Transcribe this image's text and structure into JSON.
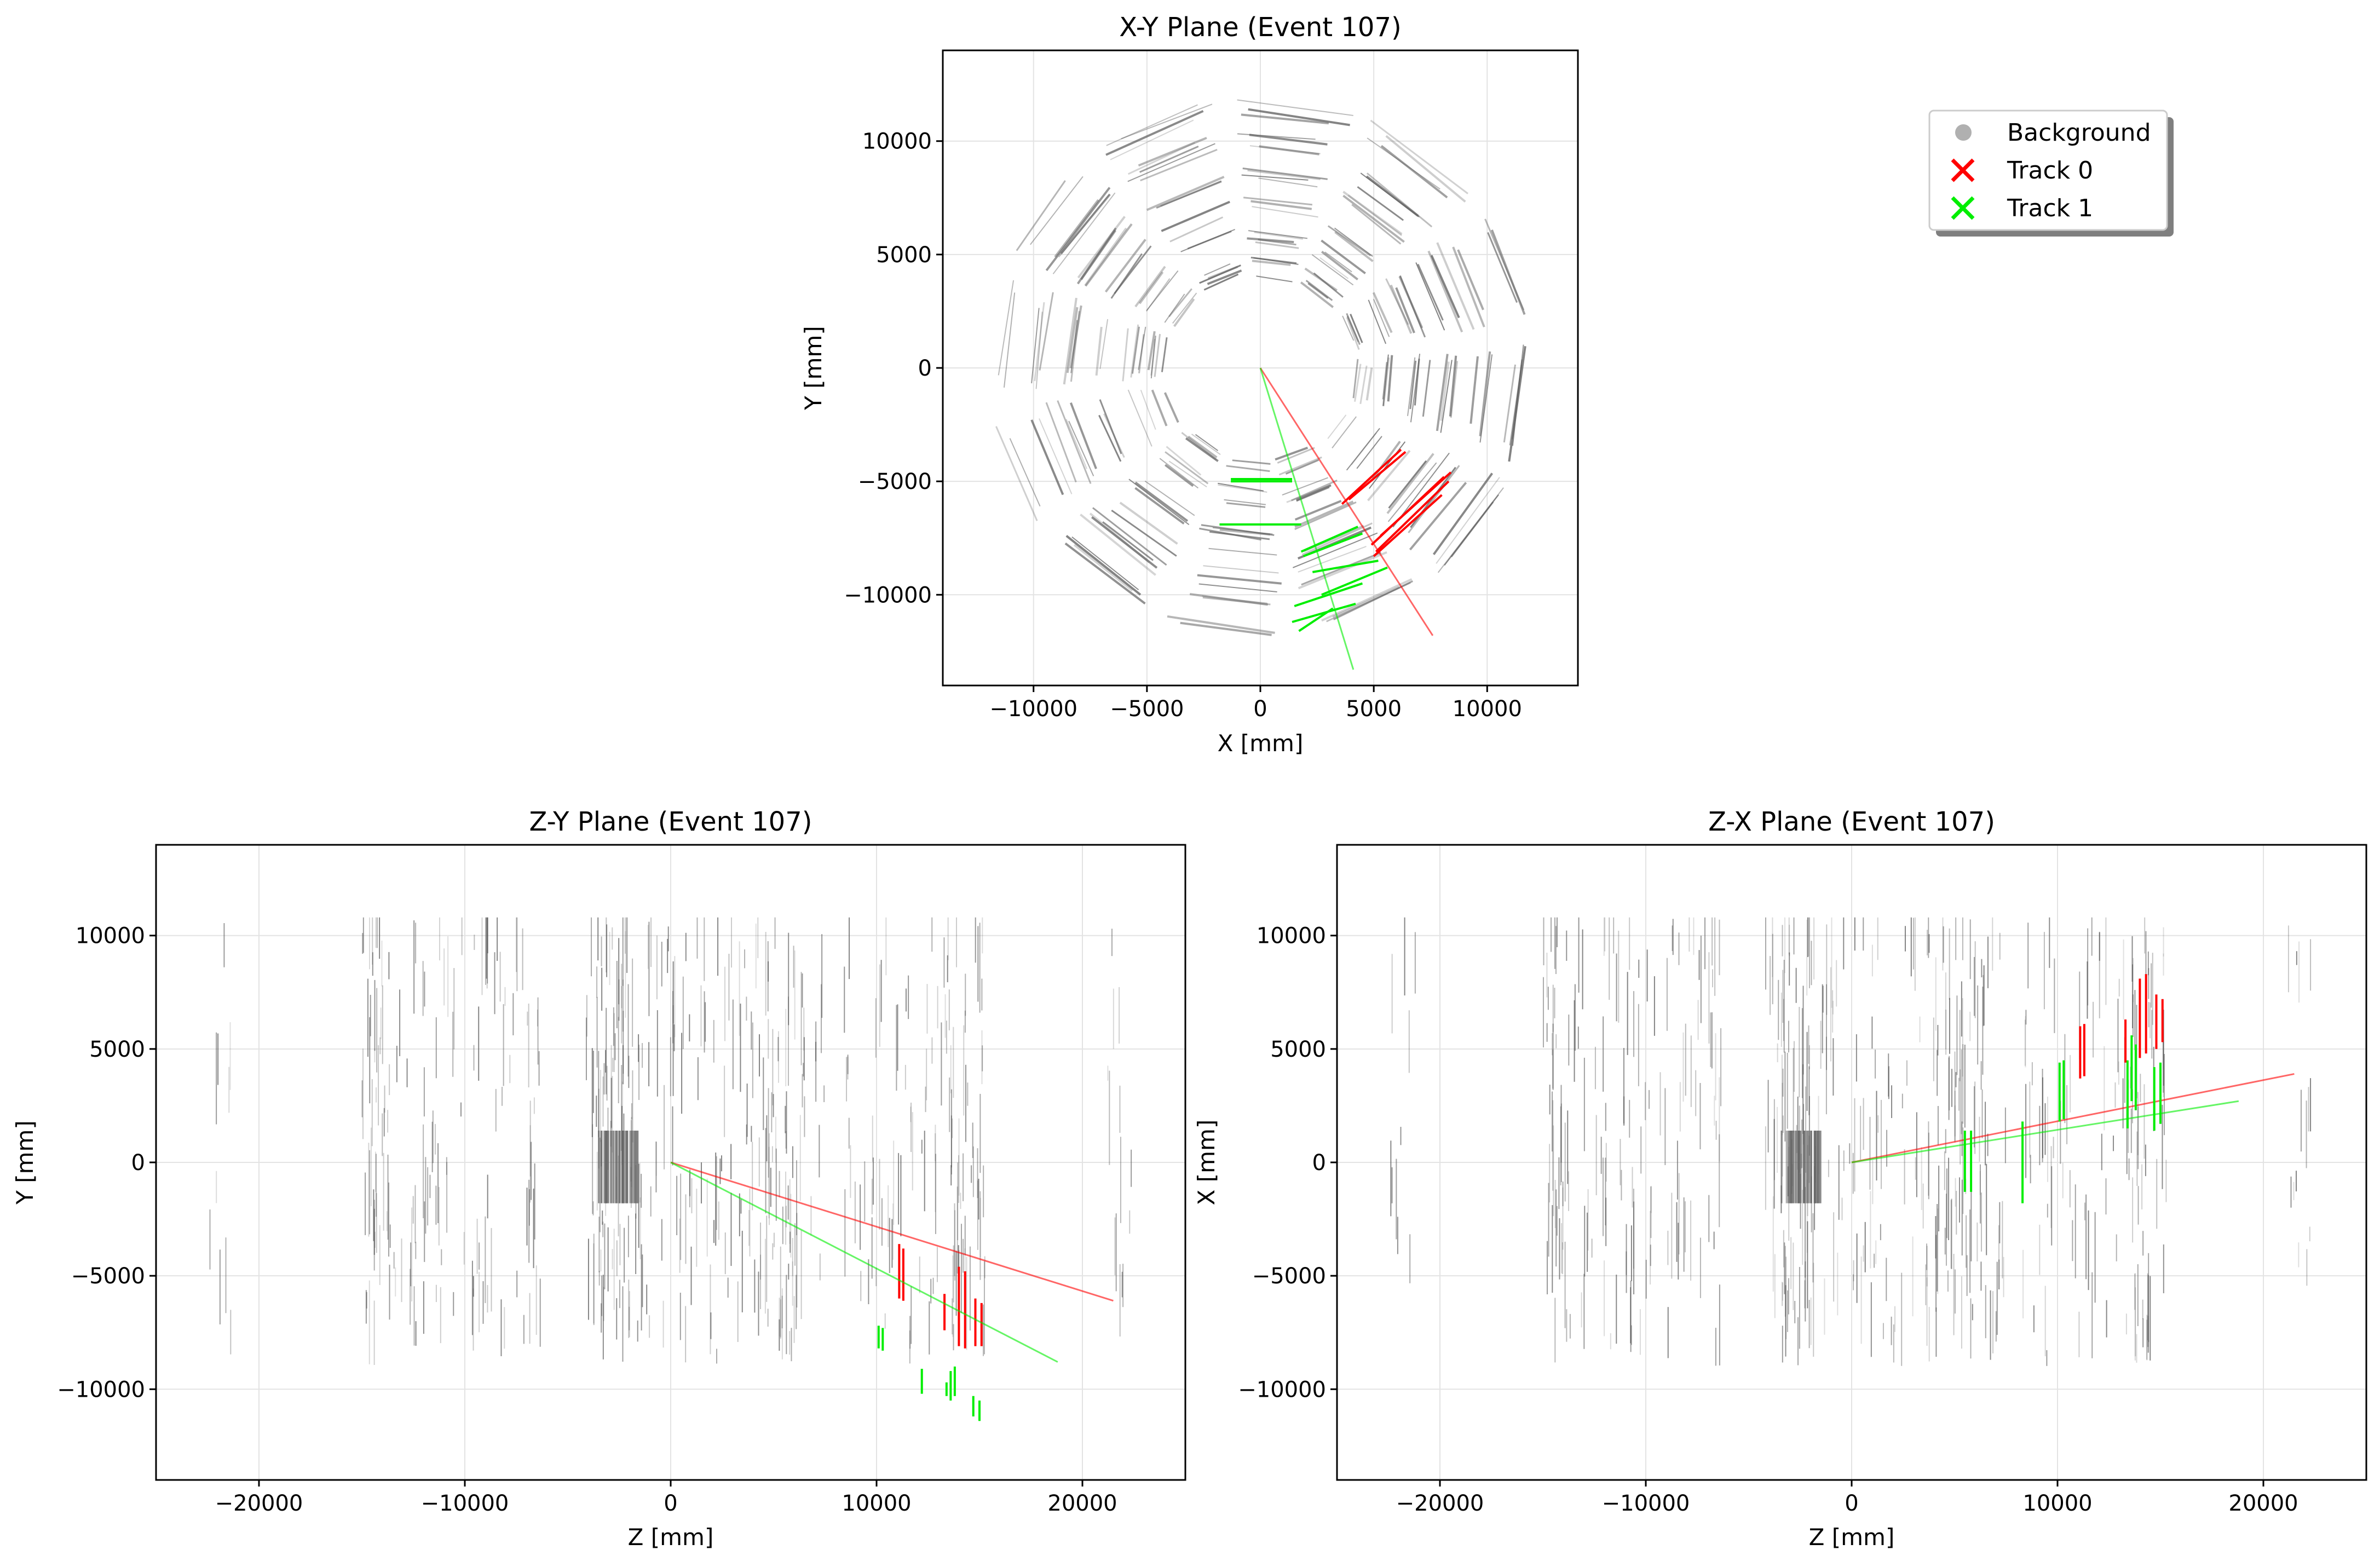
{
  "colors": {
    "background": "#b0b0b0",
    "track_0": "#ff0000",
    "track_1": "#00ee00",
    "grid": "#e3e3e3",
    "frame": "#000000"
  },
  "legend": {
    "placement": "upper-right",
    "items": [
      {
        "label": "Background",
        "marker": "circle",
        "color": "#b0b0b0"
      },
      {
        "label": "Track 0",
        "marker": "x",
        "color": "#ff0000"
      },
      {
        "label": "Track 1",
        "marker": "x",
        "color": "#00ee00"
      }
    ]
  },
  "chart_data": [
    {
      "id": "xy",
      "type": "scatter",
      "title": "X-Y Plane (Event 107)",
      "xlabel": "X [mm]",
      "ylabel": "Y [mm]",
      "xlim": [
        -14000,
        14000
      ],
      "ylim": [
        -14000,
        14000
      ],
      "xticks": [
        -10000,
        -5000,
        0,
        5000,
        10000
      ],
      "yticks": [
        -10000,
        -5000,
        0,
        5000,
        10000
      ],
      "xtick_labels": [
        "−10000",
        "−5000",
        "0",
        "5000",
        "10000"
      ],
      "ytick_labels": [
        "−10000",
        "−5000",
        "0",
        "5000",
        "10000"
      ],
      "grid": true,
      "background_rings": {
        "sides": 12,
        "radii": [
          4500,
          5800,
          7200,
          8700,
          10000,
          11500
        ]
      },
      "tracks": [
        {
          "track": 0,
          "line_from": [
            0,
            0
          ],
          "line_to": [
            7600,
            -11800
          ],
          "segments": [
            [
              [
                3600,
                -6000
              ],
              [
                6200,
                -3600
              ]
            ],
            [
              [
                3900,
                -5800
              ],
              [
                6400,
                -3700
              ]
            ],
            [
              [
                4900,
                -7800
              ],
              [
                8100,
                -4800
              ]
            ],
            [
              [
                5100,
                -8100
              ],
              [
                8300,
                -5000
              ]
            ],
            [
              [
                5300,
                -7400
              ],
              [
                8400,
                -4600
              ]
            ],
            [
              [
                5000,
                -8300
              ],
              [
                8000,
                -5600
              ]
            ]
          ]
        },
        {
          "track": 1,
          "line_from": [
            0,
            0
          ],
          "line_to": [
            4100,
            -13300
          ],
          "segments": [
            [
              [
                -1300,
                -4900
              ],
              [
                1400,
                -4900
              ]
            ],
            [
              [
                -1300,
                -5000
              ],
              [
                1400,
                -5000
              ]
            ],
            [
              [
                -1800,
                -6900
              ],
              [
                1800,
                -6900
              ]
            ],
            [
              [
                1800,
                -8100
              ],
              [
                4300,
                -7000
              ]
            ],
            [
              [
                1900,
                -8300
              ],
              [
                4500,
                -7300
              ]
            ],
            [
              [
                2300,
                -9000
              ],
              [
                5200,
                -8500
              ]
            ],
            [
              [
                2700,
                -10000
              ],
              [
                5600,
                -8800
              ]
            ],
            [
              [
                1500,
                -10500
              ],
              [
                4500,
                -9500
              ]
            ],
            [
              [
                1400,
                -11200
              ],
              [
                4200,
                -10400
              ]
            ],
            [
              [
                1700,
                -11600
              ],
              [
                3200,
                -10600
              ]
            ]
          ]
        }
      ]
    },
    {
      "id": "zy",
      "type": "scatter",
      "title": "Z-Y Plane (Event 107)",
      "xlabel": "Z [mm]",
      "ylabel": "Y [mm]",
      "xlim": [
        -25000,
        25000
      ],
      "ylim": [
        -14000,
        14000
      ],
      "xticks": [
        -20000,
        -10000,
        0,
        10000,
        20000
      ],
      "yticks": [
        -10000,
        -5000,
        0,
        5000,
        10000
      ],
      "xtick_labels": [
        "−20000",
        "−10000",
        "0",
        "10000",
        "20000"
      ],
      "ytick_labels": [
        "−10000",
        "−5000",
        "0",
        "5000",
        "10000"
      ],
      "grid": true,
      "tracks": [
        {
          "track": 0,
          "line_from": [
            0,
            0
          ],
          "line_to": [
            21500,
            -6100
          ],
          "segments": [
            [
              [
                11100,
                -3600
              ],
              [
                11100,
                -6000
              ]
            ],
            [
              [
                11300,
                -3800
              ],
              [
                11300,
                -6100
              ]
            ],
            [
              [
                13300,
                -5800
              ],
              [
                13300,
                -7400
              ]
            ],
            [
              [
                14000,
                -4600
              ],
              [
                14000,
                -8100
              ]
            ],
            [
              [
                14300,
                -4800
              ],
              [
                14300,
                -8200
              ]
            ],
            [
              [
                14800,
                -6000
              ],
              [
                14800,
                -8100
              ]
            ],
            [
              [
                15100,
                -6200
              ],
              [
                15100,
                -8100
              ]
            ]
          ]
        },
        {
          "track": 1,
          "line_from": [
            0,
            0
          ],
          "line_to": [
            18800,
            -8800
          ],
          "segments": [
            [
              [
                10100,
                -7200
              ],
              [
                10100,
                -8200
              ]
            ],
            [
              [
                10300,
                -7300
              ],
              [
                10300,
                -8300
              ]
            ],
            [
              [
                12200,
                -9100
              ],
              [
                12200,
                -10200
              ]
            ],
            [
              [
                13400,
                -9700
              ],
              [
                13400,
                -10300
              ]
            ],
            [
              [
                13600,
                -9200
              ],
              [
                13600,
                -10500
              ]
            ],
            [
              [
                13800,
                -9000
              ],
              [
                13800,
                -10300
              ]
            ],
            [
              [
                14700,
                -10300
              ],
              [
                14700,
                -11200
              ]
            ],
            [
              [
                15000,
                -10500
              ],
              [
                15000,
                -11400
              ]
            ]
          ]
        }
      ]
    },
    {
      "id": "zx",
      "type": "scatter",
      "title": "Z-X Plane (Event 107)",
      "xlabel": "Z [mm]",
      "ylabel": "X [mm]",
      "xlim": [
        -25000,
        25000
      ],
      "ylim": [
        -14000,
        14000
      ],
      "xticks": [
        -20000,
        -10000,
        0,
        10000,
        20000
      ],
      "yticks": [
        -10000,
        -5000,
        0,
        5000,
        10000
      ],
      "xtick_labels": [
        "−20000",
        "−10000",
        "0",
        "10000",
        "20000"
      ],
      "ytick_labels": [
        "−10000",
        "−5000",
        "0",
        "5000",
        "10000"
      ],
      "grid": true,
      "tracks": [
        {
          "track": 0,
          "line_from": [
            0,
            0
          ],
          "line_to": [
            21500,
            3900
          ],
          "segments": [
            [
              [
                11100,
                3700
              ],
              [
                11100,
                6000
              ]
            ],
            [
              [
                11300,
                3800
              ],
              [
                11300,
                6100
              ]
            ],
            [
              [
                13300,
                4400
              ],
              [
                13300,
                6300
              ]
            ],
            [
              [
                14000,
                4600
              ],
              [
                14000,
                8100
              ]
            ],
            [
              [
                14300,
                4800
              ],
              [
                14300,
                8300
              ]
            ],
            [
              [
                14800,
                5000
              ],
              [
                14800,
                7400
              ]
            ],
            [
              [
                15100,
                5300
              ],
              [
                15100,
                7200
              ]
            ]
          ]
        },
        {
          "track": 1,
          "line_from": [
            0,
            0
          ],
          "line_to": [
            18800,
            2700
          ],
          "segments": [
            [
              [
                5500,
                -1300
              ],
              [
                5500,
                1400
              ]
            ],
            [
              [
                5800,
                -1300
              ],
              [
                5800,
                1400
              ]
            ],
            [
              [
                8300,
                -1800
              ],
              [
                8300,
                1800
              ]
            ],
            [
              [
                10100,
                1800
              ],
              [
                10100,
                4400
              ]
            ],
            [
              [
                10300,
                1900
              ],
              [
                10300,
                4500
              ]
            ],
            [
              [
                13400,
                1500
              ],
              [
                13400,
                4500
              ]
            ],
            [
              [
                13600,
                2700
              ],
              [
                13600,
                5600
              ]
            ],
            [
              [
                13800,
                2300
              ],
              [
                13800,
                5200
              ]
            ],
            [
              [
                14700,
                1400
              ],
              [
                14700,
                4200
              ]
            ],
            [
              [
                15000,
                1700
              ],
              [
                15000,
                4400
              ]
            ]
          ]
        }
      ]
    }
  ]
}
